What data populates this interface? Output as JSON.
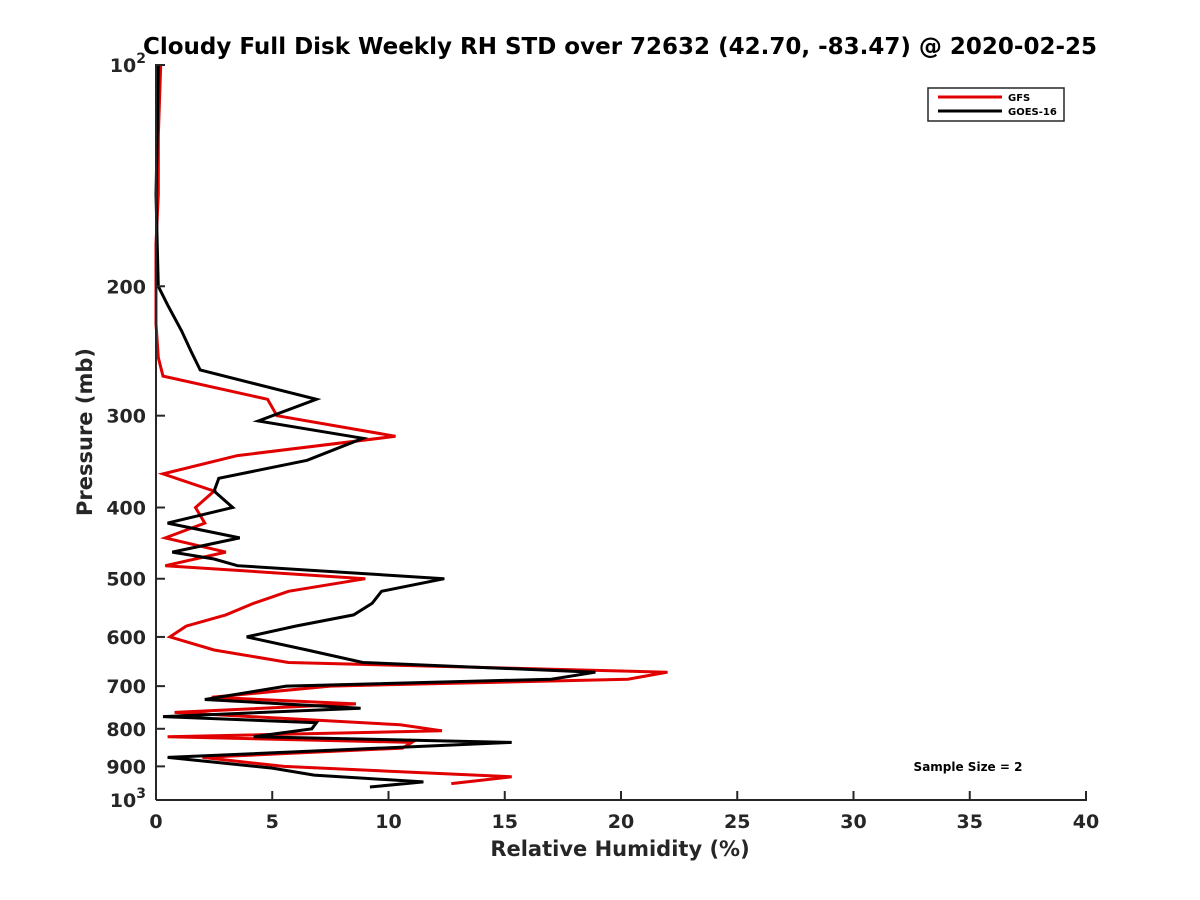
{
  "chart_data": {
    "type": "line",
    "title": "Cloudy Full Disk Weekly RH STD over 72632 (42.70, -83.47) @ 2020-02-25",
    "xlabel": "Relative Humidity (%)",
    "ylabel": "Pressure (mb)",
    "xlim": [
      0,
      40
    ],
    "ylim": [
      100,
      1000
    ],
    "y_scale": "log",
    "y_reversed": true,
    "x_ticks": [
      "0",
      "5",
      "10",
      "15",
      "20",
      "25",
      "30",
      "35",
      "40"
    ],
    "y_ticks": [
      {
        "value": 100,
        "label": "10",
        "sup": "2"
      },
      {
        "value": 200,
        "label": "200",
        "sup": ""
      },
      {
        "value": 300,
        "label": "300",
        "sup": ""
      },
      {
        "value": 400,
        "label": "400",
        "sup": ""
      },
      {
        "value": 500,
        "label": "500",
        "sup": ""
      },
      {
        "value": 600,
        "label": "600",
        "sup": ""
      },
      {
        "value": 700,
        "label": "700",
        "sup": ""
      },
      {
        "value": 800,
        "label": "800",
        "sup": ""
      },
      {
        "value": 900,
        "label": "900",
        "sup": ""
      },
      {
        "value": 1000,
        "label": "10",
        "sup": "3"
      }
    ],
    "legend_placement": "top-right",
    "annotation": "Sample Size = 2",
    "series": [
      {
        "name": "GFS",
        "color": "#e00000",
        "points": [
          [
            0.2,
            100
          ],
          [
            0.1,
            125
          ],
          [
            0.1,
            150
          ],
          [
            0.0,
            175
          ],
          [
            0.0,
            200
          ],
          [
            0.0,
            225
          ],
          [
            0.1,
            250
          ],
          [
            0.3,
            265
          ],
          [
            4.8,
            285
          ],
          [
            5.2,
            300
          ],
          [
            10.3,
            320
          ],
          [
            3.5,
            340
          ],
          [
            0.3,
            360
          ],
          [
            2.5,
            380
          ],
          [
            1.7,
            400
          ],
          [
            2.1,
            420
          ],
          [
            0.4,
            440
          ],
          [
            3.0,
            460
          ],
          [
            0.4,
            480
          ],
          [
            9.0,
            500
          ],
          [
            5.7,
            520
          ],
          [
            4.2,
            540
          ],
          [
            3.0,
            560
          ],
          [
            1.3,
            580
          ],
          [
            0.6,
            600
          ],
          [
            2.5,
            625
          ],
          [
            5.7,
            650
          ],
          [
            22.0,
            670
          ],
          [
            20.3,
            685
          ],
          [
            7.5,
            700
          ],
          [
            2.4,
            725
          ],
          [
            8.6,
            740
          ],
          [
            0.8,
            760
          ],
          [
            10.5,
            790
          ],
          [
            12.3,
            805
          ],
          [
            0.5,
            820
          ],
          [
            11.0,
            835
          ],
          [
            10.6,
            850
          ],
          [
            2.0,
            875
          ],
          [
            5.5,
            900
          ],
          [
            15.3,
            930
          ],
          [
            12.7,
            950
          ]
        ]
      },
      {
        "name": "GOES-16",
        "color": "#000000",
        "points": [
          [
            0.1,
            100
          ],
          [
            0.05,
            125
          ],
          [
            0.0,
            150
          ],
          [
            0.05,
            175
          ],
          [
            0.1,
            200
          ],
          [
            0.5,
            212
          ],
          [
            1.1,
            230
          ],
          [
            1.5,
            245
          ],
          [
            1.9,
            260
          ],
          [
            6.9,
            285
          ],
          [
            4.4,
            305
          ],
          [
            8.9,
            322
          ],
          [
            6.5,
            345
          ],
          [
            2.7,
            365
          ],
          [
            2.5,
            380
          ],
          [
            3.3,
            400
          ],
          [
            0.5,
            420
          ],
          [
            3.6,
            440
          ],
          [
            0.7,
            460
          ],
          [
            2.5,
            470
          ],
          [
            3.5,
            480
          ],
          [
            12.4,
            500
          ],
          [
            9.7,
            520
          ],
          [
            9.3,
            540
          ],
          [
            8.5,
            560
          ],
          [
            6.0,
            580
          ],
          [
            3.9,
            600
          ],
          [
            6.5,
            625
          ],
          [
            8.9,
            650
          ],
          [
            18.9,
            670
          ],
          [
            17.0,
            685
          ],
          [
            5.6,
            700
          ],
          [
            2.1,
            730
          ],
          [
            8.8,
            750
          ],
          [
            0.3,
            770
          ],
          [
            6.9,
            785
          ],
          [
            6.7,
            800
          ],
          [
            4.2,
            820
          ],
          [
            15.3,
            835
          ],
          [
            0.5,
            875
          ],
          [
            5.0,
            905
          ],
          [
            6.8,
            925
          ],
          [
            11.5,
            945
          ],
          [
            9.2,
            960
          ]
        ]
      }
    ]
  }
}
